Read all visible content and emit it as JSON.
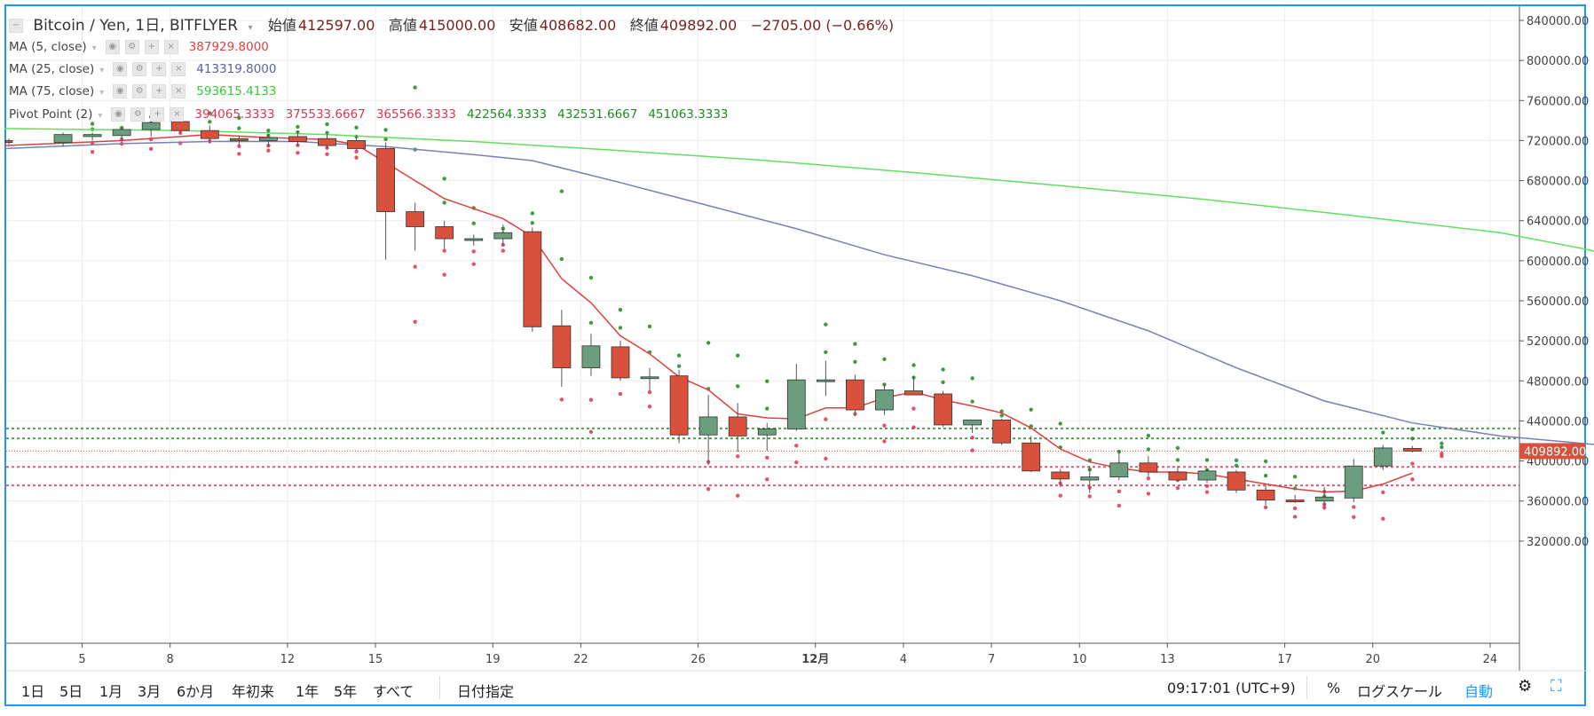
{
  "header": {
    "symbol": "Bitcoin / Yen, 1日, BITFLYER",
    "open_label": "始値",
    "open": "412597.00",
    "high_label": "高値",
    "high": "415000.00",
    "low_label": "安値",
    "low": "408682.00",
    "close_label": "終値",
    "close": "409892.00",
    "change": "−2705.00 (−0.66%)"
  },
  "indicators": [
    {
      "label": "MA (5, close)",
      "values": [
        "387929.8000"
      ],
      "colors": [
        "#e04040"
      ]
    },
    {
      "label": "MA (25, close)",
      "values": [
        "413319.8000"
      ],
      "colors": [
        "#5b5ea6"
      ]
    },
    {
      "label": "MA (75, close)",
      "values": [
        "593615.4133"
      ],
      "colors": [
        "#33cc33"
      ]
    },
    {
      "label": "Pivot Point (2)",
      "values": [
        "394065.3333",
        "375533.6667",
        "365566.3333",
        "422564.3333",
        "432531.6667",
        "451063.3333"
      ],
      "colors": [
        "#e0334f",
        "#e0334f",
        "#e0334f",
        "#1f8a1f",
        "#1f8a1f",
        "#1f8a1f"
      ]
    }
  ],
  "bottom_bar": {
    "ranges": [
      "1日",
      "5日",
      "1月",
      "3月",
      "6か月",
      "年初来",
      "1年",
      "5年",
      "すべて"
    ],
    "date_select": "日付指定",
    "time": "09:17:01 (UTC+9)",
    "percent": "%",
    "log_scale": "ログスケール",
    "auto": "自動"
  },
  "chart_data": {
    "type": "candlestick",
    "y_ticks": [
      "840000.00",
      "800000.00",
      "760000.00",
      "720000.00",
      "680000.00",
      "640000.00",
      "600000.00",
      "560000.00",
      "520000.00",
      "480000.00",
      "440000.00",
      "400000.00",
      "360000.00",
      "320000.00"
    ],
    "x_ticks": [
      "5",
      "8",
      "12",
      "15",
      "19",
      "22",
      "26",
      "12月",
      "4",
      "7",
      "10",
      "13",
      "17",
      "20",
      "24"
    ],
    "last_price_label": "409892.00",
    "colors": {
      "up": "#6a9e7f",
      "down": "#d9513c",
      "ma5": "#e04040",
      "ma25": "#7b7fb8",
      "ma75": "#5fe05f",
      "pivot_support": "#e0334f",
      "pivot_resistance": "#1f8a1f"
    },
    "candles": [
      [
        null,
        720000,
        722000,
        716000,
        718000
      ],
      [
        1,
        718000,
        728000,
        714000,
        726000
      ],
      [
        2,
        724000,
        728000,
        720000,
        726000
      ],
      [
        3,
        725000,
        734000,
        718000,
        731000
      ],
      [
        4,
        731000,
        741000,
        724000,
        738000
      ],
      [
        5,
        739000,
        742000,
        728000,
        730000
      ],
      [
        6,
        730000,
        735000,
        717000,
        722000
      ],
      [
        7,
        722000,
        725000,
        715000,
        720000
      ],
      [
        8,
        720000,
        726000,
        713000,
        723000
      ],
      [
        9,
        724000,
        730000,
        715000,
        719000
      ],
      [
        10,
        722000,
        727000,
        712000,
        715000
      ],
      [
        11,
        720000,
        725000,
        710000,
        712000
      ],
      [
        12,
        712000,
        718000,
        601000,
        649000
      ],
      [
        13,
        649000,
        658000,
        610000,
        634000
      ],
      [
        14,
        634000,
        640000,
        612000,
        622000
      ],
      [
        15,
        622000,
        626000,
        615000,
        622000
      ],
      [
        16,
        622000,
        636000,
        615000,
        628000
      ],
      [
        17,
        629000,
        633000,
        529000,
        534000
      ],
      [
        18,
        535000,
        551000,
        474000,
        493000
      ],
      [
        19,
        493000,
        527000,
        485000,
        515000
      ],
      [
        20,
        514000,
        520000,
        480000,
        483000
      ],
      [
        21,
        484000,
        493000,
        470000,
        484000
      ],
      [
        22,
        485000,
        491000,
        418000,
        426000
      ],
      [
        23,
        426000,
        466000,
        396000,
        444000
      ],
      [
        24,
        444000,
        458000,
        409000,
        425000
      ],
      [
        25,
        426000,
        438000,
        410000,
        432000
      ],
      [
        26,
        432000,
        497000,
        430000,
        481000
      ],
      [
        27,
        481000,
        500000,
        465000,
        481000
      ],
      [
        28,
        481000,
        486000,
        445000,
        451000
      ],
      [
        29,
        451000,
        477000,
        446000,
        471000
      ],
      [
        30,
        470000,
        485000,
        466000,
        466000
      ],
      [
        31,
        467000,
        470000,
        434000,
        436000
      ],
      [
        32,
        436000,
        441000,
        428000,
        441000
      ],
      [
        33,
        441000,
        442000,
        416000,
        418000
      ],
      [
        34,
        418000,
        425000,
        389000,
        390000
      ],
      [
        35,
        389000,
        392000,
        374000,
        382000
      ],
      [
        36,
        381000,
        395000,
        368000,
        384000
      ],
      [
        37,
        384000,
        410000,
        381000,
        398000
      ],
      [
        38,
        398000,
        405000,
        385000,
        389000
      ],
      [
        39,
        389000,
        395000,
        379000,
        381000
      ],
      [
        40,
        381000,
        392000,
        378000,
        390000
      ],
      [
        41,
        389000,
        391000,
        368000,
        371000
      ],
      [
        42,
        371000,
        376000,
        356000,
        361000
      ],
      [
        43,
        361000,
        366000,
        358000,
        360000
      ],
      [
        44,
        360000,
        374000,
        354000,
        364000
      ],
      [
        45,
        363000,
        402000,
        359000,
        395000
      ],
      [
        46,
        395000,
        416000,
        391000,
        413000
      ],
      [
        47,
        412597,
        415000,
        408682,
        409892
      ]
    ],
    "ma5": [
      [
        0,
        715000
      ],
      [
        3,
        720000
      ],
      [
        6,
        726000
      ],
      [
        8,
        723000
      ],
      [
        10,
        721000
      ],
      [
        11,
        716000
      ],
      [
        12,
        698000
      ],
      [
        14,
        662000
      ],
      [
        16,
        642000
      ],
      [
        17,
        624000
      ],
      [
        18,
        582000
      ],
      [
        19,
        558000
      ],
      [
        20,
        525000
      ],
      [
        21,
        507000
      ],
      [
        22,
        484000
      ],
      [
        23,
        471000
      ],
      [
        24,
        447000
      ],
      [
        25,
        443000
      ],
      [
        26,
        442000
      ],
      [
        27,
        453000
      ],
      [
        28,
        453000
      ],
      [
        29,
        463000
      ],
      [
        30,
        469000
      ],
      [
        31,
        461000
      ],
      [
        32,
        455000
      ],
      [
        33,
        448000
      ],
      [
        34,
        433000
      ],
      [
        35,
        412000
      ],
      [
        36,
        399000
      ],
      [
        37,
        393000
      ],
      [
        38,
        389000
      ],
      [
        39,
        389000
      ],
      [
        40,
        387000
      ],
      [
        41,
        382000
      ],
      [
        42,
        377000
      ],
      [
        43,
        372000
      ],
      [
        44,
        369000
      ],
      [
        45,
        370000
      ],
      [
        46,
        377000
      ],
      [
        47,
        388000
      ]
    ],
    "ma25": [
      [
        0,
        712000
      ],
      [
        3,
        717000
      ],
      [
        6,
        719000
      ],
      [
        9,
        719000
      ],
      [
        12,
        714000
      ],
      [
        15,
        706000
      ],
      [
        17,
        700000
      ],
      [
        20,
        678000
      ],
      [
        23,
        655000
      ],
      [
        26,
        632000
      ],
      [
        29,
        606000
      ],
      [
        32,
        585000
      ],
      [
        35,
        560000
      ],
      [
        38,
        530000
      ],
      [
        41,
        493000
      ],
      [
        44,
        460000
      ],
      [
        47,
        438000
      ],
      [
        50,
        425000
      ],
      [
        53,
        417000
      ],
      [
        55,
        413000
      ]
    ],
    "ma75": [
      [
        0,
        732000
      ],
      [
        5,
        730000
      ],
      [
        10,
        726000
      ],
      [
        15,
        719000
      ],
      [
        20,
        710000
      ],
      [
        25,
        700000
      ],
      [
        30,
        688000
      ],
      [
        35,
        675000
      ],
      [
        40,
        661000
      ],
      [
        45,
        645000
      ],
      [
        50,
        628000
      ],
      [
        53,
        611000
      ],
      [
        55,
        595000
      ]
    ],
    "pivot_levels": {
      "s1": 394065.3333,
      "s2": 375533.6667,
      "r1": 422564.3333,
      "r2": 432531.6667
    }
  }
}
